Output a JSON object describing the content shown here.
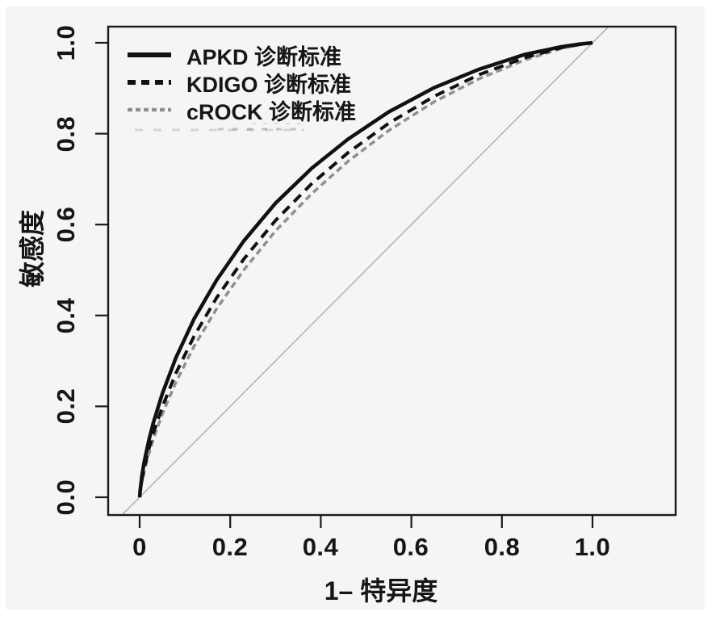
{
  "figure": {
    "page_background": "#ffffff",
    "panel_background": "#f4f5f4",
    "axis_color": "#1a1a1a",
    "text_color": "#161616"
  },
  "chart_data": {
    "type": "line",
    "subtype": "roc-curves",
    "title": "",
    "xlabel": "1– 特异度",
    "ylabel": "敏感度",
    "xlim": [
      0,
      1
    ],
    "ylim": [
      0,
      1
    ],
    "grid": false,
    "legend_position": "top-left",
    "x_ticks": [
      0,
      0.2,
      0.4,
      0.6,
      0.8,
      1.0
    ],
    "x_tick_labels": [
      "0",
      "0.2",
      "0.4",
      "0.6",
      "0.8",
      "1.0"
    ],
    "y_ticks": [
      0,
      0.2,
      0.4,
      0.6,
      0.8,
      1.0
    ],
    "y_tick_labels": [
      "0.0",
      "0.2",
      "0.4",
      "0.6",
      "0.8",
      "1.0"
    ],
    "reference_line": {
      "name": "chance-diagonal",
      "from": [
        0,
        0
      ],
      "to": [
        1,
        1
      ],
      "color": "#b3b3b3"
    },
    "x": [
      0,
      0.001,
      0.005,
      0.01,
      0.02,
      0.03,
      0.05,
      0.08,
      0.12,
      0.17,
      0.23,
      0.3,
      0.38,
      0.46,
      0.55,
      0.65,
      0.75,
      0.85,
      0.93,
      0.97,
      1.0
    ],
    "series": [
      {
        "name": "APKD 诊断标准",
        "style": "solid",
        "color": "#111111",
        "stroke_width": 4.5,
        "y": [
          0,
          0.014,
          0.047,
          0.077,
          0.124,
          0.163,
          0.228,
          0.307,
          0.392,
          0.478,
          0.564,
          0.647,
          0.724,
          0.788,
          0.848,
          0.901,
          0.942,
          0.974,
          0.991,
          0.997,
          1
        ]
      },
      {
        "name": "KDIGO 诊断标准",
        "style": "dashed",
        "color": "#111111",
        "stroke_width": 4,
        "y": [
          0,
          0.011,
          0.038,
          0.064,
          0.105,
          0.14,
          0.199,
          0.273,
          0.354,
          0.439,
          0.524,
          0.609,
          0.69,
          0.758,
          0.823,
          0.882,
          0.93,
          0.967,
          0.989,
          0.996,
          1
        ]
      },
      {
        "name": "cROCK 诊断标准",
        "style": "dashed",
        "color": "#8f8f8f",
        "stroke_width": 3.5,
        "y": [
          0,
          0.009,
          0.033,
          0.056,
          0.094,
          0.127,
          0.183,
          0.253,
          0.332,
          0.415,
          0.5,
          0.586,
          0.668,
          0.739,
          0.807,
          0.87,
          0.921,
          0.962,
          0.987,
          0.996,
          1
        ]
      }
    ]
  },
  "legend": {
    "ghost_row_present": true
  }
}
